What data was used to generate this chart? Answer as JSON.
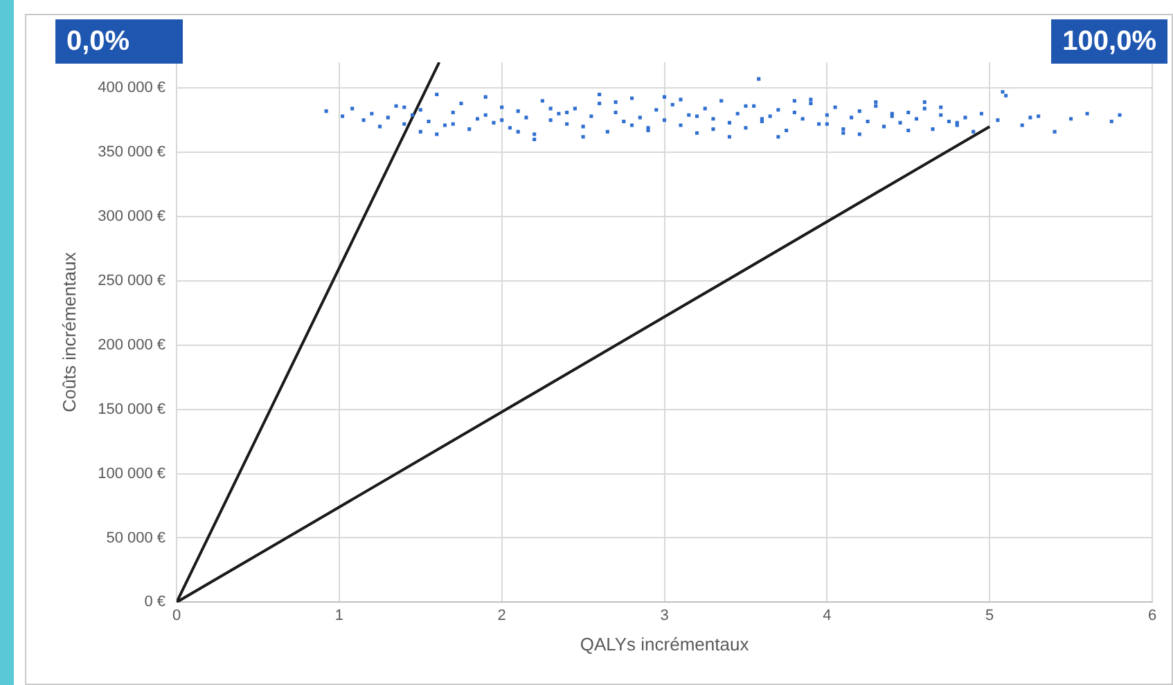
{
  "chart_data": {
    "type": "scatter",
    "xlabel": "QALYs incrémentaux",
    "ylabel": "Coûts incrémentaux",
    "annotations": [
      "0,0%",
      "100,0%"
    ],
    "xlim": [
      0,
      6
    ],
    "xticks": [
      0,
      1,
      2,
      3,
      4,
      5,
      6
    ],
    "ylim": [
      0,
      420000
    ],
    "yticks": [
      {
        "value": 0,
        "label": "0 €"
      },
      {
        "value": 50000,
        "label": "50 000 €"
      },
      {
        "value": 100000,
        "label": "100 000 €"
      },
      {
        "value": 150000,
        "label": "150 000 €"
      },
      {
        "value": 200000,
        "label": "200 000 €"
      },
      {
        "value": 250000,
        "label": "250 000 €"
      },
      {
        "value": 300000,
        "label": "300 000 €"
      },
      {
        "value": 350000,
        "label": "350 000 €"
      },
      {
        "value": 400000,
        "label": "400 000 €"
      }
    ],
    "grid": true,
    "legend": false,
    "series": [
      {
        "type": "scatter",
        "marker": "square",
        "color": "#2f6fd0",
        "x": [
          0.92,
          1.02,
          1.08,
          1.15,
          1.2,
          1.25,
          1.3,
          1.35,
          1.4,
          1.45,
          1.5,
          1.55,
          1.6,
          1.65,
          1.7,
          1.75,
          1.8,
          1.85,
          1.9,
          1.95,
          2.0,
          2.05,
          2.1,
          2.15,
          2.2,
          2.25,
          2.3,
          2.35,
          2.4,
          2.45,
          2.5,
          2.55,
          2.6,
          2.65,
          2.7,
          2.75,
          2.8,
          2.85,
          2.9,
          2.95,
          3.0,
          3.05,
          3.1,
          3.15,
          3.2,
          3.25,
          3.3,
          3.35,
          3.4,
          3.45,
          3.5,
          3.55,
          3.6,
          3.65,
          3.7,
          3.75,
          3.8,
          3.85,
          3.9,
          3.95,
          4.0,
          4.05,
          4.1,
          4.15,
          4.2,
          4.25,
          4.3,
          4.35,
          4.4,
          4.45,
          4.5,
          4.55,
          4.6,
          4.65,
          4.7,
          4.75,
          4.8,
          4.85,
          4.9,
          4.95,
          5.05,
          5.1,
          5.2,
          5.3,
          5.4,
          5.5,
          5.6,
          5.75,
          5.8,
          1.5,
          1.7,
          1.9,
          2.1,
          2.3,
          2.5,
          2.7,
          2.9,
          3.1,
          3.3,
          3.5,
          3.7,
          3.9,
          4.1,
          4.3,
          4.5,
          4.7,
          2.2,
          2.6,
          3.0,
          3.4,
          3.8,
          4.2,
          4.6,
          3.58,
          1.4,
          1.6,
          2.0,
          2.4,
          2.8,
          3.2,
          3.6,
          4.0,
          4.4,
          4.8,
          5.08,
          5.25
        ],
        "values": [
          382000,
          378000,
          384000,
          375000,
          380000,
          370000,
          377000,
          386000,
          372000,
          379000,
          383000,
          374000,
          395000,
          371000,
          381000,
          388000,
          368000,
          376000,
          379000,
          373000,
          385000,
          369000,
          382000,
          377000,
          364000,
          390000,
          375000,
          380000,
          372000,
          384000,
          370000,
          378000,
          388000,
          366000,
          381000,
          374000,
          392000,
          377000,
          369000,
          383000,
          375000,
          387000,
          371000,
          379000,
          365000,
          384000,
          376000,
          390000,
          373000,
          380000,
          369000,
          386000,
          374000,
          378000,
          383000,
          367000,
          381000,
          376000,
          388000,
          372000,
          379000,
          385000,
          368000,
          377000,
          382000,
          374000,
          386000,
          370000,
          378000,
          373000,
          381000,
          376000,
          384000,
          368000,
          379000,
          374000,
          371000,
          377000,
          366000,
          380000,
          375000,
          394000,
          371000,
          378000,
          366000,
          376000,
          380000,
          374000,
          379000,
          366000,
          372000,
          393000,
          366000,
          384000,
          362000,
          389000,
          367000,
          391000,
          368000,
          386000,
          362000,
          391000,
          365000,
          389000,
          367000,
          385000,
          360000,
          395000,
          393000,
          362000,
          390000,
          364000,
          389000,
          407000,
          385000,
          364000,
          375000,
          381000,
          371000,
          378000,
          376000,
          372000,
          380000,
          373000,
          397000,
          377000
        ]
      },
      {
        "type": "line",
        "color": "#1a1a1a",
        "x": [
          0,
          1.615
        ],
        "values": [
          0,
          420000
        ]
      },
      {
        "type": "line",
        "color": "#1a1a1a",
        "x": [
          0,
          5
        ],
        "values": [
          0,
          370000
        ]
      }
    ]
  }
}
